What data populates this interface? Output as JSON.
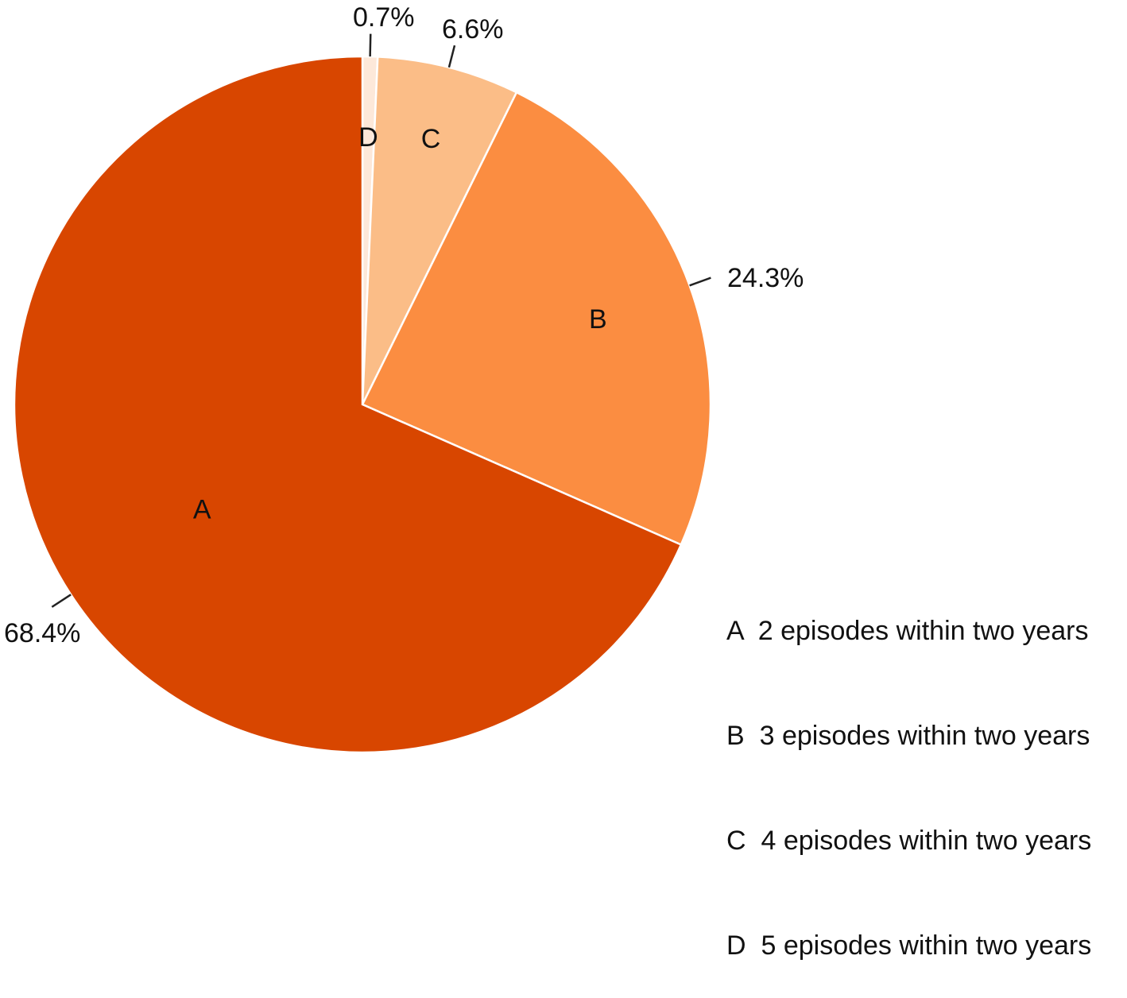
{
  "chart_data": {
    "type": "pie",
    "start_angle_deg": 0,
    "direction": "clockwise",
    "slices": [
      {
        "key": "A",
        "value": 68.4,
        "label": "68.4%",
        "color": "#d84600"
      },
      {
        "key": "B",
        "value": 24.3,
        "label": "24.3%",
        "color": "#fb8d41"
      },
      {
        "key": "C",
        "value": 6.6,
        "label": "6.6%",
        "color": "#fbbd87"
      },
      {
        "key": "D",
        "value": 0.7,
        "label": "0.7%",
        "color": "#fde8d9"
      }
    ],
    "legend": [
      {
        "key": "A",
        "text": "2 episodes within two years"
      },
      {
        "key": "B",
        "text": "3 episodes within two years"
      },
      {
        "key": "C",
        "text": "4 episodes within two years"
      },
      {
        "key": "D",
        "text": "5 episodes within two years"
      }
    ],
    "legend_placement": "bottom-right"
  }
}
